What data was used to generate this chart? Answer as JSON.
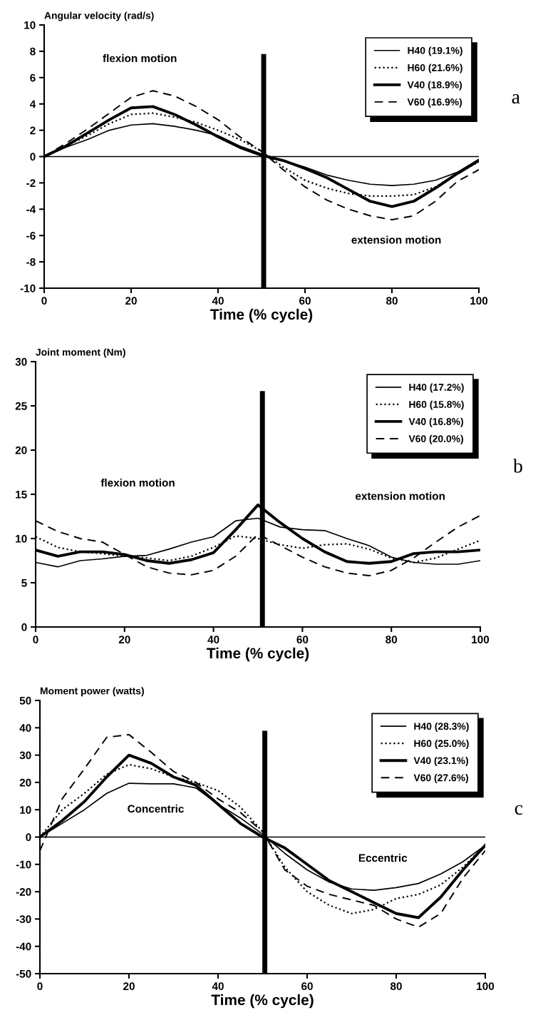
{
  "chart_data": [
    {
      "type": "line",
      "ylabel": "Angular velocity (rad/s)",
      "xlabel": "Time (% cycle)",
      "xlim": [
        0,
        100
      ],
      "xticks": [
        0,
        20,
        40,
        60,
        80,
        100
      ],
      "ylim": [
        -10,
        10
      ],
      "yticks": [
        -10,
        -8,
        -6,
        -4,
        -2,
        0,
        2,
        4,
        6,
        8,
        10
      ],
      "legend": "top right",
      "grid": false,
      "x": [
        0,
        5,
        10,
        15,
        20,
        25,
        30,
        35,
        40,
        45,
        50,
        55,
        60,
        65,
        70,
        75,
        80,
        85,
        90,
        95,
        100
      ],
      "series": [
        {
          "name": "H40 (19.1%)",
          "color": "#000000",
          "line_style": "solid",
          "values": [
            0,
            0.7,
            1.3,
            2.0,
            2.4,
            2.5,
            2.3,
            2.0,
            1.6,
            0.8,
            0.2,
            -0.3,
            -0.8,
            -1.4,
            -1.8,
            -2.1,
            -2.2,
            -2.1,
            -1.8,
            -1.2,
            -0.2
          ]
        },
        {
          "name": "H60 (21.6%)",
          "color": "#000000",
          "line_style": "dotted",
          "values": [
            0,
            0.8,
            1.6,
            2.5,
            3.2,
            3.3,
            3.0,
            2.6,
            2.0,
            1.3,
            0.4,
            -0.8,
            -1.8,
            -2.4,
            -2.8,
            -3.0,
            -3.0,
            -2.9,
            -2.3,
            -1.3,
            -0.4
          ]
        },
        {
          "name": "V40 (18.9%)",
          "color": "#000000",
          "line_style": "solid",
          "values": [
            0,
            0.8,
            1.8,
            2.8,
            3.7,
            3.8,
            3.2,
            2.4,
            1.5,
            0.7,
            0.1,
            -0.3,
            -0.9,
            -1.6,
            -2.5,
            -3.4,
            -3.8,
            -3.4,
            -2.4,
            -1.3,
            -0.3
          ]
        },
        {
          "name": "V60 (16.9%)",
          "color": "#000000",
          "line_style": "dashed",
          "values": [
            0,
            1.0,
            2.1,
            3.3,
            4.5,
            5.0,
            4.6,
            3.8,
            2.8,
            1.5,
            0.4,
            -1.0,
            -2.3,
            -3.3,
            -4.0,
            -4.5,
            -4.8,
            -4.5,
            -3.4,
            -1.9,
            -1.0
          ]
        }
      ],
      "ref_lines": [
        {
          "axis": "x",
          "value": 50.5,
          "color": "#000000"
        },
        {
          "axis": "y",
          "value": 0,
          "color": "#000000"
        }
      ],
      "annotations": [
        "flexion motion",
        "extension motion",
        "a"
      ]
    },
    {
      "type": "line",
      "ylabel": "Joint moment (Nm)",
      "xlabel": "Time (% cycle)",
      "xlim": [
        0,
        100
      ],
      "xticks": [
        0,
        20,
        40,
        60,
        80,
        100
      ],
      "ylim": [
        0,
        30
      ],
      "yticks": [
        0,
        5,
        10,
        15,
        20,
        25,
        30
      ],
      "legend": "top right",
      "grid": false,
      "x": [
        0,
        5,
        10,
        15,
        20,
        25,
        30,
        35,
        40,
        45,
        50,
        55,
        60,
        65,
        70,
        75,
        80,
        85,
        90,
        95,
        100
      ],
      "series": [
        {
          "name": "H40 (17.2%)",
          "color": "#000000",
          "line_style": "solid",
          "values": [
            7.3,
            6.8,
            7.5,
            7.7,
            8.0,
            8.1,
            8.8,
            9.6,
            10.2,
            12.0,
            12.3,
            11.3,
            11.0,
            10.9,
            10.0,
            9.2,
            7.9,
            7.3,
            7.1,
            7.1,
            7.5
          ]
        },
        {
          "name": "H60 (15.8%)",
          "color": "#000000",
          "line_style": "dotted",
          "values": [
            10.2,
            9.0,
            8.5,
            8.3,
            8.0,
            7.8,
            7.5,
            8.0,
            9.0,
            10.3,
            10.0,
            9.3,
            8.9,
            9.3,
            9.4,
            8.8,
            7.8,
            7.3,
            7.8,
            8.8,
            9.8
          ]
        },
        {
          "name": "V40 (16.8%)",
          "color": "#000000",
          "line_style": "solid",
          "values": [
            8.7,
            8.0,
            8.5,
            8.5,
            8.2,
            7.5,
            7.2,
            7.6,
            8.4,
            11.0,
            13.8,
            11.8,
            10.0,
            8.5,
            7.4,
            7.2,
            7.4,
            8.3,
            8.5,
            8.5,
            8.7
          ]
        },
        {
          "name": "V60 (20.0%)",
          "color": "#000000",
          "line_style": "dashed",
          "values": [
            12.0,
            10.8,
            10.0,
            9.6,
            8.2,
            6.8,
            6.1,
            5.9,
            6.4,
            8.0,
            10.5,
            9.2,
            7.9,
            6.8,
            6.1,
            5.8,
            6.4,
            7.8,
            9.6,
            11.3,
            12.6
          ]
        }
      ],
      "ref_lines": [
        {
          "axis": "x",
          "value": 51,
          "color": "#000000"
        }
      ],
      "annotations": [
        "flexion motion",
        "extension motion",
        "b"
      ]
    },
    {
      "type": "line",
      "ylabel": "Moment power (watts)",
      "xlabel": "Time (% cycle)",
      "xlim": [
        0,
        100
      ],
      "xticks": [
        0,
        20,
        40,
        60,
        80,
        100
      ],
      "ylim": [
        -50,
        50
      ],
      "yticks": [
        -50,
        -40,
        -30,
        -20,
        -10,
        0,
        10,
        20,
        30,
        40,
        50
      ],
      "legend": "top right",
      "grid": false,
      "x": [
        0,
        5,
        10,
        15,
        20,
        25,
        30,
        35,
        40,
        45,
        50,
        55,
        60,
        65,
        70,
        75,
        80,
        85,
        90,
        95,
        100
      ],
      "series": [
        {
          "name": "H40 (28.3%)",
          "color": "#000000",
          "line_style": "solid",
          "values": [
            0,
            5,
            10,
            16,
            19.7,
            19.5,
            19.5,
            18,
            12,
            7,
            1,
            -6,
            -12,
            -16.5,
            -19,
            -19.5,
            -18.5,
            -17,
            -13.5,
            -9,
            -3
          ]
        },
        {
          "name": "H60 (25.0%)",
          "color": "#000000",
          "line_style": "dotted",
          "values": [
            0,
            10,
            16,
            23,
            26.5,
            25,
            22,
            20,
            17,
            11,
            2,
            -11,
            -20,
            -25,
            -28,
            -26.5,
            -22.5,
            -21,
            -17.5,
            -11,
            -3
          ]
        },
        {
          "name": "V40 (23.1%)",
          "color": "#000000",
          "line_style": "solid",
          "values": [
            0,
            6,
            13,
            22,
            30,
            27,
            22,
            19,
            12,
            5,
            0,
            -4,
            -10,
            -16,
            -20,
            -24,
            -28,
            -29.5,
            -22,
            -12,
            -3
          ]
        },
        {
          "name": "V60 (27.6%)",
          "color": "#000000",
          "line_style": "dashed",
          "values": [
            -5,
            14,
            25,
            36.5,
            37.5,
            31,
            24,
            20,
            14,
            9,
            2,
            -12,
            -18,
            -21,
            -23,
            -25,
            -30,
            -33,
            -28,
            -15,
            -5
          ]
        }
      ],
      "ref_lines": [
        {
          "axis": "x",
          "value": 50.5,
          "color": "#000000"
        },
        {
          "axis": "y",
          "value": 0,
          "color": "#000000"
        }
      ],
      "annotations": [
        "Concentric",
        "Eccentric",
        "c"
      ]
    }
  ]
}
